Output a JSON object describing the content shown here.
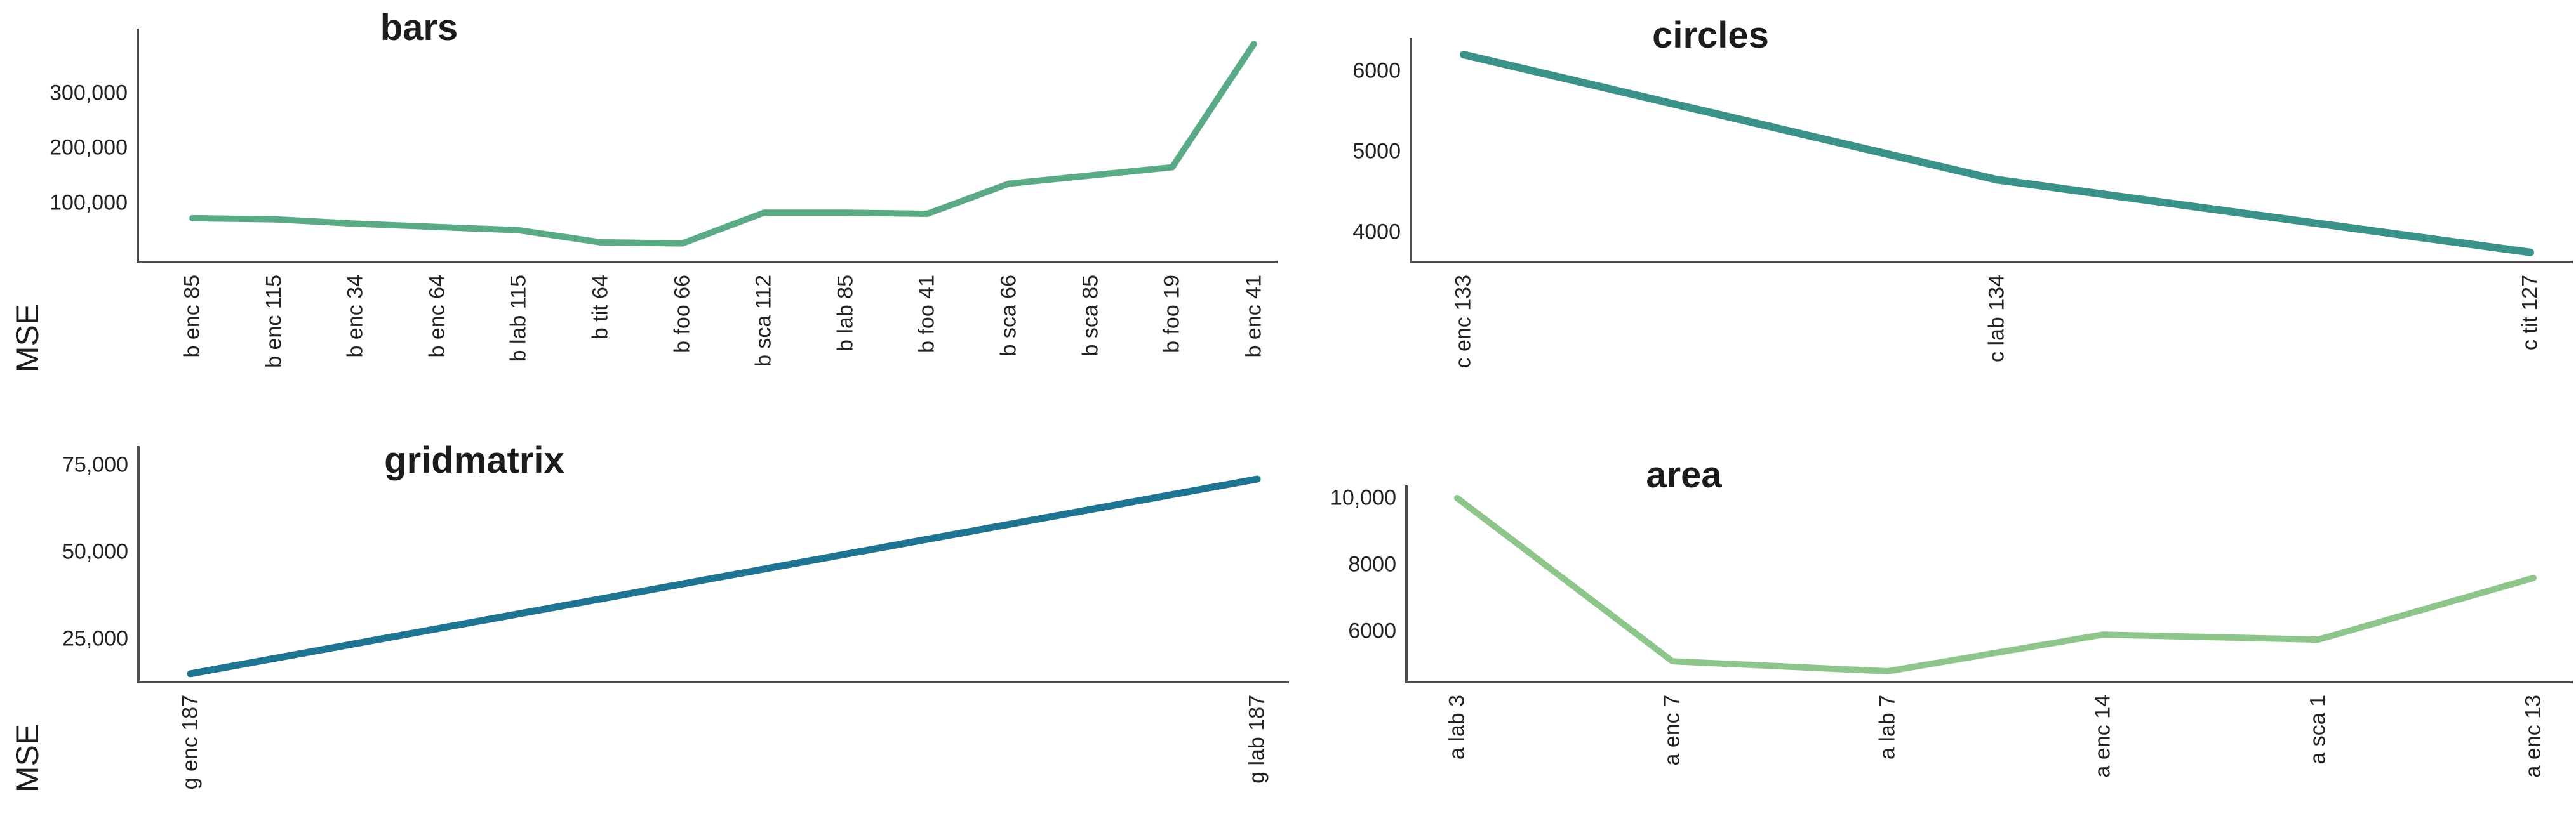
{
  "figure": {
    "background": "#ffffff",
    "axis_color": "#4d4d4d",
    "tick_text_color": "#222222",
    "title_text_color": "#1c1c1c"
  },
  "chart_data": [
    {
      "type": "line",
      "title": "bars",
      "ylabel": "MSE",
      "xlabel": "",
      "categories": [
        "b enc 85",
        "b enc 115",
        "b enc 34",
        "b enc 64",
        "b lab 115",
        "b tit 64",
        "b foo 66",
        "b sca 112",
        "b lab 85",
        "b foo 41",
        "b sca 66",
        "b sca 85",
        "b foo 19",
        "b enc 41"
      ],
      "values": [
        72000,
        70000,
        62000,
        56000,
        50000,
        28000,
        26000,
        82000,
        82000,
        80000,
        135000,
        150000,
        165000,
        390000
      ],
      "y_ticks": [
        {
          "value": 100000,
          "label": "100,000"
        },
        {
          "value": 200000,
          "label": "200,000"
        },
        {
          "value": 300000,
          "label": "300,000"
        }
      ],
      "ylim": [
        -8000,
        418000
      ],
      "grid": false,
      "legend": false,
      "line_color": "#5aaa85"
    },
    {
      "type": "line",
      "title": "circles",
      "ylabel": "",
      "xlabel": "",
      "categories": [
        "c enc 133",
        "c lab 134",
        "c tit 127"
      ],
      "values": [
        6200,
        4650,
        3750
      ],
      "y_ticks": [
        {
          "value": 4000,
          "label": "4000"
        },
        {
          "value": 5000,
          "label": "5000"
        },
        {
          "value": 6000,
          "label": "6000"
        }
      ],
      "ylim": [
        3630,
        6405
      ],
      "grid": false,
      "legend": false,
      "line_color": "#3a9289"
    },
    {
      "type": "line",
      "title": "gridmatrix",
      "ylabel": "MSE",
      "xlabel": "",
      "categories": [
        "g enc 187",
        "g lab 187"
      ],
      "values": [
        15000,
        71000
      ],
      "y_ticks": [
        {
          "value": 25000,
          "label": "25,000"
        },
        {
          "value": 50000,
          "label": "50,000"
        },
        {
          "value": 75000,
          "label": "75,000"
        }
      ],
      "ylim": [
        12600,
        80500
      ],
      "grid": false,
      "legend": false,
      "line_color": "#1f7491"
    },
    {
      "type": "line",
      "title": "area",
      "ylabel": "",
      "xlabel": "",
      "categories": [
        "a lab 3",
        "a enc 7",
        "a lab 7",
        "a enc 14",
        "a sca 1",
        "a enc 13"
      ],
      "values": [
        10000,
        5100,
        4800,
        5900,
        5750,
        7600
      ],
      "y_ticks": [
        {
          "value": 6000,
          "label": "6000"
        },
        {
          "value": 8000,
          "label": "8000"
        },
        {
          "value": 10000,
          "label": "10,000"
        }
      ],
      "ylim": [
        4475,
        10380
      ],
      "grid": false,
      "legend": false,
      "line_color": "#8dc58a"
    }
  ]
}
